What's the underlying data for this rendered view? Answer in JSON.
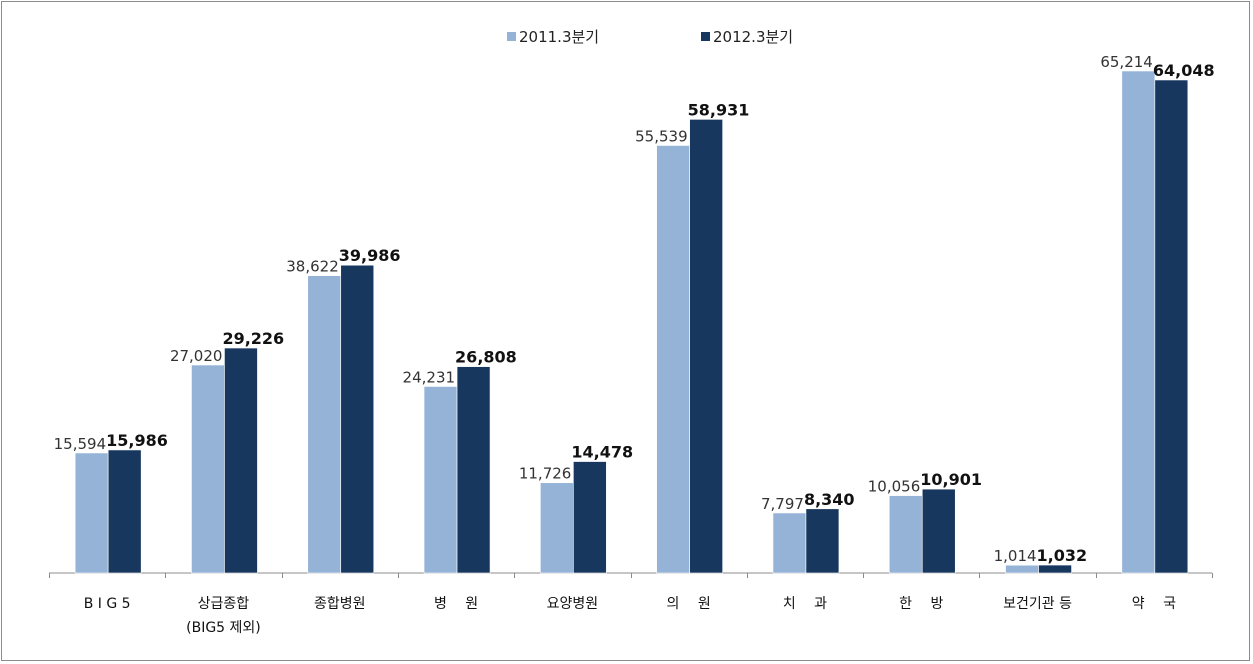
{
  "chart_data": {
    "type": "bar",
    "title": "",
    "xlabel": "",
    "ylabel": "",
    "categories": [
      "B I G 5",
      "상급종합\n(BIG5 제외)",
      "종합병원",
      "병　 원",
      "요양병원",
      "의　 원",
      "치　 과",
      "한　 방",
      "보건기관 등",
      "약　 국"
    ],
    "series": [
      {
        "name": "2011.3분기",
        "color": "#95b3d7",
        "values": [
          15594,
          27020,
          38622,
          24231,
          11726,
          55539,
          7797,
          10056,
          1014,
          65214
        ],
        "labels": [
          "15,594",
          "27,020",
          "38,622",
          "24,231",
          "11,726",
          "55,539",
          "7,797",
          "10,056",
          "1,014",
          "65,214"
        ]
      },
      {
        "name": "2012.3분기",
        "color": "#17375e",
        "values": [
          15986,
          29226,
          39986,
          26808,
          14478,
          58931,
          8340,
          10901,
          1032,
          64048
        ],
        "labels": [
          "15,986",
          "29,226",
          "39,986",
          "26,808",
          "14,478",
          "58,931",
          "8,340",
          "10,901",
          "1,032",
          "64,048"
        ]
      }
    ],
    "ylim": [
      0,
      72000
    ],
    "grid": false,
    "legend_position": "top"
  }
}
